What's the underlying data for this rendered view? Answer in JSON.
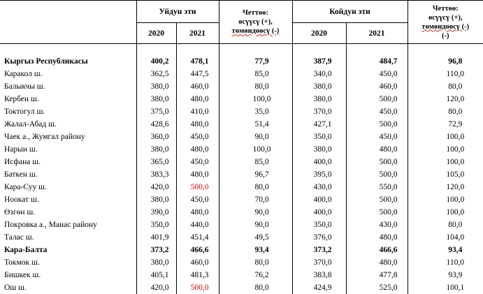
{
  "header": {
    "group1": "Уйдун эти",
    "group2": "Койдун эти",
    "diff_line1": "Четтөө:",
    "diff_line2": "өсүүсү (+),",
    "diff_line3": "төмөндөөсү (-)",
    "year_a": "2020",
    "year_b": "2021"
  },
  "rows": [
    {
      "name": "Кыргыз Республикасы",
      "v": [
        "400,2",
        "478,1",
        "77,9",
        "387,9",
        "484,7",
        "96,8"
      ],
      "bold": true
    },
    {
      "name": "Каракол ш.",
      "v": [
        "362,5",
        "447,5",
        "85,0",
        "340,0",
        "450,0",
        "110,0"
      ]
    },
    {
      "name": "Балыкчы ш.",
      "v": [
        "380,0",
        "460,0",
        "80,0",
        "380,0",
        "460,0",
        "80,0"
      ]
    },
    {
      "name": "Кербен ш.",
      "v": [
        "380,0",
        "480,0",
        "100,0",
        "380,0",
        "500,0",
        "120,0"
      ]
    },
    {
      "name": "Токтогул ш.",
      "v": [
        "375,0",
        "410,0",
        "35,0",
        "370,0",
        "450,0",
        "80,0"
      ]
    },
    {
      "name": "Жалал-Абад ш.",
      "v": [
        "428,6",
        "480,0",
        "51,4",
        "427,1",
        "500,0",
        "72,9"
      ]
    },
    {
      "name": "Чаек а., Жумгал району",
      "v": [
        "360,0",
        "450,0",
        "90,0",
        "350,0",
        "450,0",
        "100,0"
      ]
    },
    {
      "name": "Нарын ш.",
      "v": [
        "380,0",
        "480,0",
        "100,0",
        "380,0",
        "480,0",
        "100,0"
      ]
    },
    {
      "name": "Исфана ш.",
      "v": [
        "365,0",
        "450,0",
        "85,0",
        "400,0",
        "500,0",
        "100,0"
      ]
    },
    {
      "name": "Баткен ш.",
      "v": [
        "383,3",
        "480,0",
        "96,7",
        "395,0",
        "500,0",
        "105,0"
      ]
    },
    {
      "name": "Кара-Суу ш.",
      "v": [
        "420,0",
        "500,0",
        "80,0",
        "430,0",
        "550,0",
        "120,0"
      ],
      "red1": true
    },
    {
      "name": "Ноокат ш.",
      "v": [
        "380,0",
        "450,0",
        "70,0",
        "400,0",
        "500,0",
        "100,0"
      ]
    },
    {
      "name": "Өзгөн ш.",
      "v": [
        "390,0",
        "480,0",
        "90,0",
        "400,0",
        "500,0",
        "100,0"
      ]
    },
    {
      "name": "Покровка а., Манас району",
      "v": [
        "350,0",
        "440,0",
        "90,0",
        "350,0",
        "430,0",
        "80,0"
      ]
    },
    {
      "name": "Талас ш.",
      "v": [
        "401,9",
        "451,4",
        "49,5",
        "376,0",
        "480,0",
        "104,0"
      ]
    },
    {
      "name": "Кара-Балта",
      "v": [
        "373,2",
        "466,6",
        "93,4",
        "373,2",
        "466,6",
        "93,4"
      ],
      "bold": true
    },
    {
      "name": "Токмок ш.",
      "v": [
        "380,0",
        "460,0",
        "80,0",
        "370,0",
        "480,0",
        "110,0"
      ]
    },
    {
      "name": "Бишкек ш.",
      "v": [
        "405,1",
        "481,3",
        "76,2",
        "383,8",
        "477,8",
        "93,9"
      ]
    },
    {
      "name": "Ош ш.",
      "v": [
        "420,0",
        "500,0",
        "80,0",
        "424,9",
        "525,0",
        "100,1"
      ],
      "red1": true
    }
  ]
}
